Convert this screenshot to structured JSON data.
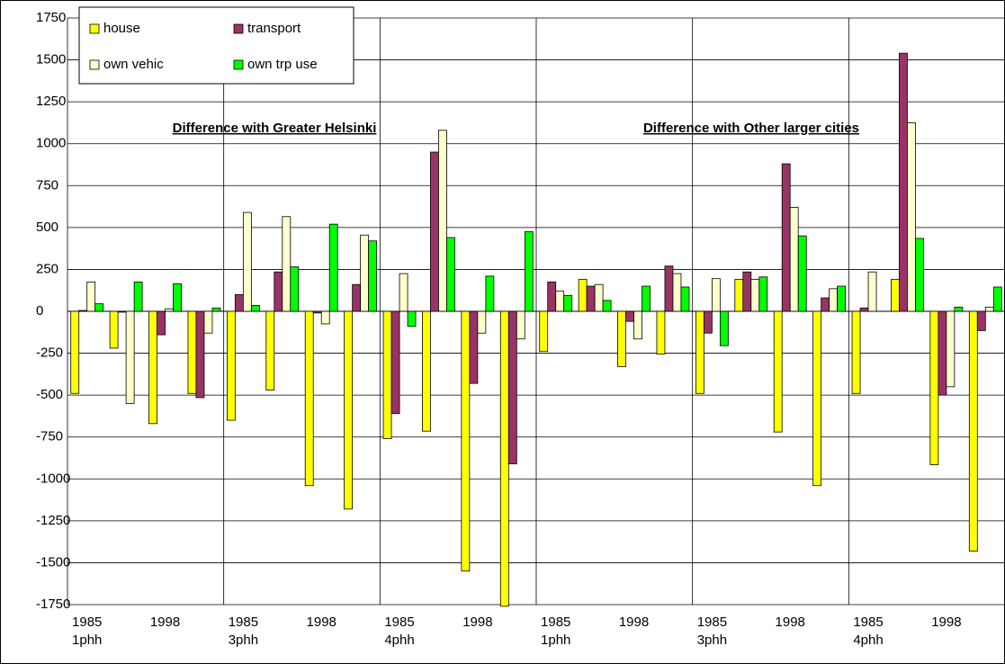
{
  "chart_data": {
    "type": "bar",
    "categories": [
      "1985",
      null,
      "1998",
      null,
      "1985",
      null,
      "1998",
      null,
      "1985",
      null,
      "1998",
      null,
      "1985",
      null,
      "1998",
      null,
      "1985",
      null,
      "1998",
      null,
      "1985",
      null,
      "1998",
      null
    ],
    "groups": [
      "1phh",
      "3phh",
      "4phh",
      "1phh",
      "3phh",
      "4phh"
    ],
    "annotations": [
      "Difference with Greater Helsinki",
      "Difference with Other larger cities"
    ],
    "series": [
      {
        "name": "house",
        "color": "#ffff00",
        "values": [
          -490,
          -220,
          -670,
          -490,
          -650,
          -470,
          -1040,
          -1180,
          -760,
          -715,
          -1550,
          -1760,
          -240,
          190,
          -330,
          -255,
          -490,
          190,
          -720,
          -1040,
          -490,
          190,
          -915,
          -1430
        ]
      },
      {
        "name": "transport",
        "color": "#993366",
        "values": [
          5,
          -5,
          -140,
          -515,
          100,
          235,
          -10,
          160,
          -610,
          950,
          -430,
          -910,
          175,
          150,
          -60,
          270,
          -130,
          235,
          880,
          80,
          20,
          1540,
          -500,
          -115
        ]
      },
      {
        "name": "own vehic",
        "color": "#ffffcc",
        "values": [
          175,
          -550,
          15,
          -130,
          590,
          565,
          -75,
          455,
          225,
          1080,
          -130,
          -165,
          120,
          160,
          -165,
          225,
          195,
          190,
          620,
          135,
          235,
          1125,
          -450,
          25
        ]
      },
      {
        "name": "own trp use",
        "color": "#00ff00",
        "values": [
          45,
          175,
          165,
          20,
          35,
          265,
          520,
          420,
          -90,
          440,
          210,
          475,
          95,
          65,
          150,
          145,
          -205,
          205,
          450,
          150,
          0,
          435,
          25,
          145
        ]
      }
    ],
    "ylim": [
      -1750,
      1750
    ],
    "yticks": [
      -1750,
      -1500,
      -1250,
      -1000,
      -750,
      -500,
      -250,
      0,
      250,
      500,
      750,
      1000,
      1250,
      1500,
      1750
    ],
    "grid": true
  }
}
